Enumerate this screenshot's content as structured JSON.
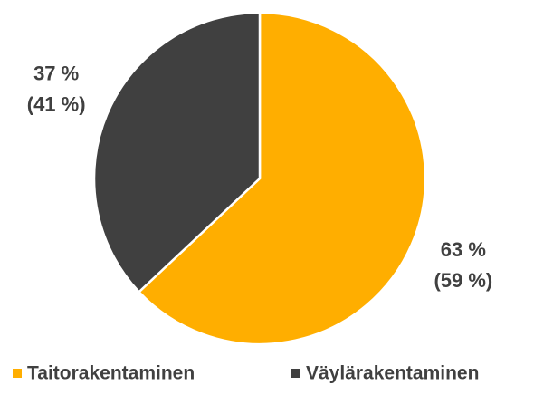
{
  "chart_data": {
    "type": "pie",
    "categories": [
      "Taitorakentaminen",
      "Väylärakentaminen"
    ],
    "values": [
      63,
      37
    ],
    "value_labels": [
      "63 %",
      "37 %"
    ],
    "secondary_labels": [
      "(59 %)",
      "(41 %)"
    ],
    "colors": [
      "#ffae00",
      "#404040"
    ],
    "legend": "bottom"
  }
}
